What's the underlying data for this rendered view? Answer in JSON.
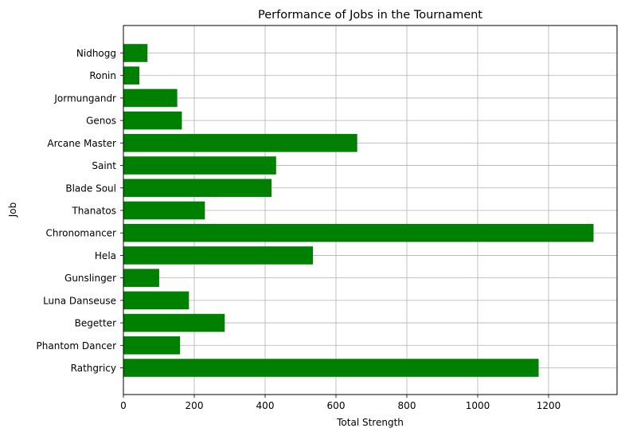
{
  "chart_data": {
    "type": "bar",
    "orientation": "horizontal",
    "title": "Performance of Jobs in the Tournament",
    "xlabel": "Total Strength",
    "ylabel": "Job",
    "categories": [
      "Rathgricy",
      "Phantom Dancer",
      "Begetter",
      "Luna Danseuse",
      "Gunslinger",
      "Hela",
      "Chronomancer",
      "Thanatos",
      "Blade Soul",
      "Saint",
      "Arcane Master",
      "Genos",
      "Jormungandr",
      "Ronin",
      "Nidhogg"
    ],
    "values": [
      1172,
      160,
      286,
      185,
      101,
      535,
      1327,
      230,
      418,
      431,
      660,
      165,
      152,
      45,
      68
    ],
    "xlim": [
      0,
      1400
    ],
    "xticks": [
      0,
      200,
      400,
      600,
      800,
      1000,
      1200
    ],
    "bar_color": "#008000",
    "grid": true
  }
}
